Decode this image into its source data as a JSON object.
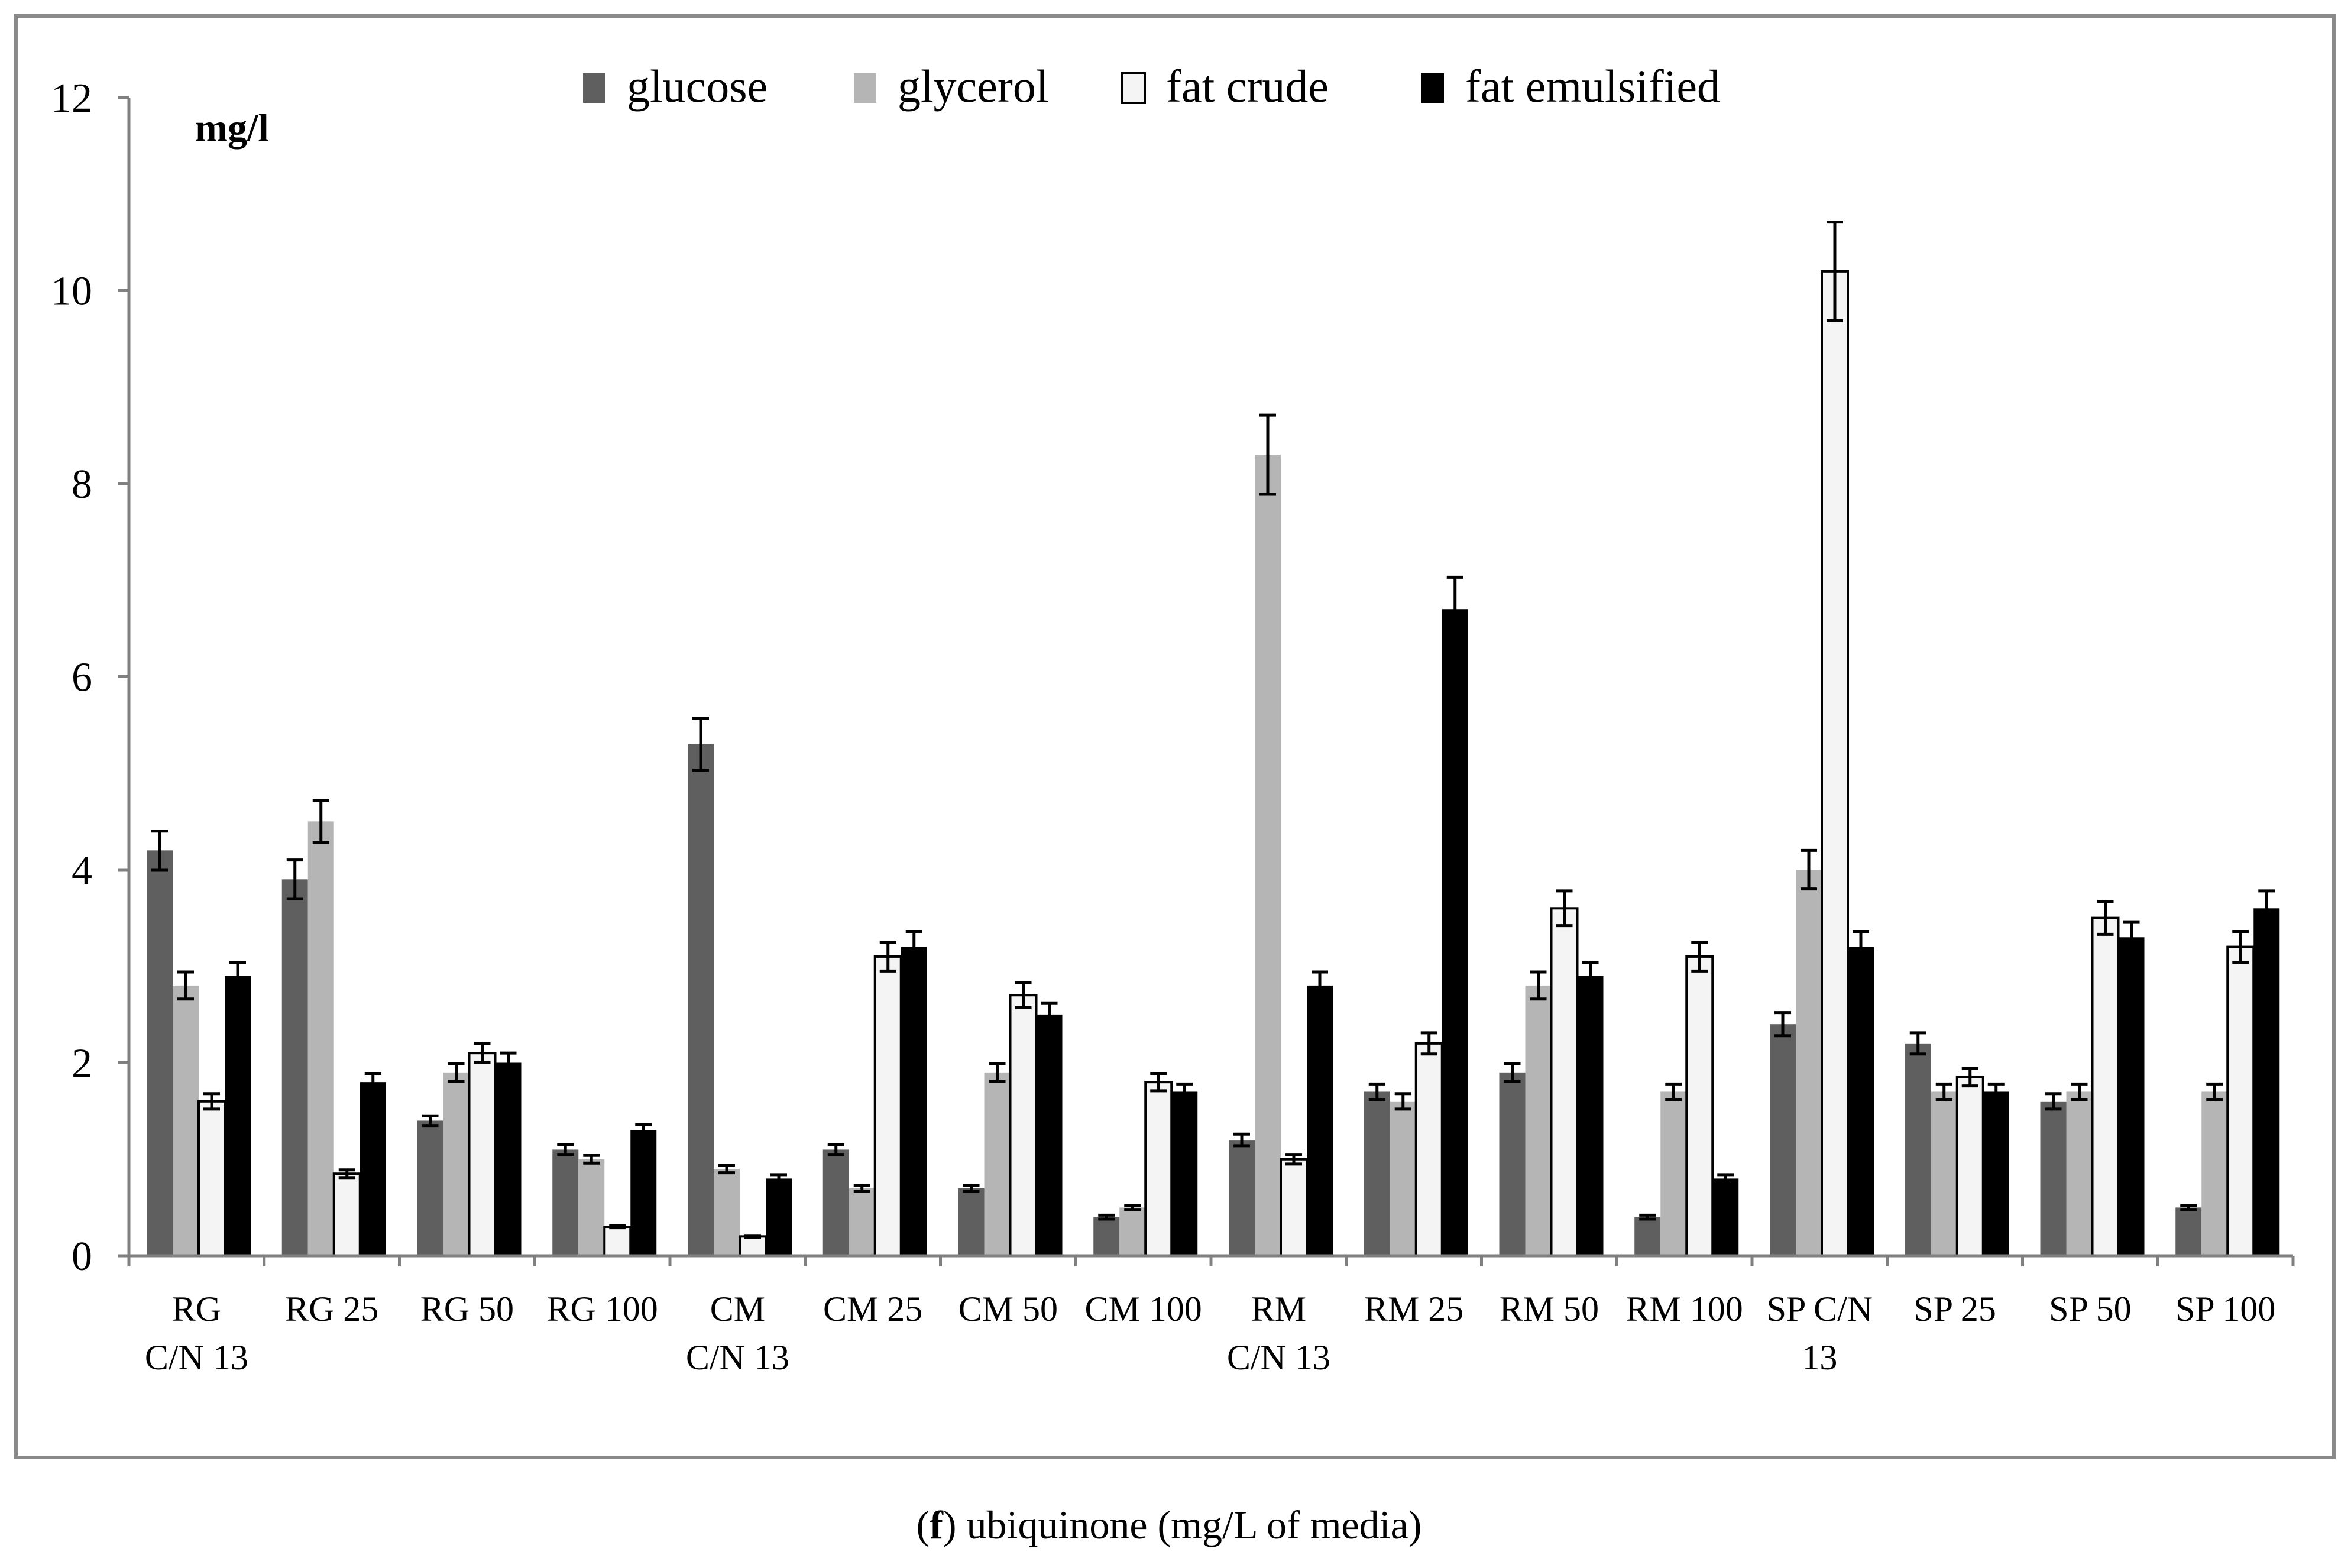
{
  "colors": {
    "glucose": "#5f5f5f",
    "glycerol": "#b5b5b5",
    "fat_crude": "#f4f4f4",
    "fat_emulsified": "#000000",
    "axis": "#808080"
  },
  "caption": {
    "letter": "f",
    "open_paren": "(",
    "close_paren": ")",
    "text": " ubiquinone (mg/L of media)"
  },
  "chart_data": {
    "type": "bar",
    "title": "",
    "ylabel": "mg/l",
    "xlabel": "",
    "ylim": [
      0,
      12
    ],
    "yticks": [
      0,
      2,
      4,
      6,
      8,
      10,
      12
    ],
    "grid": false,
    "legend_position": "top-center",
    "categories": [
      [
        "RG",
        "C/N 13"
      ],
      [
        "RG 25"
      ],
      [
        "RG 50"
      ],
      [
        "RG 100"
      ],
      [
        "CM",
        "C/N 13"
      ],
      [
        "CM 25"
      ],
      [
        "CM 50"
      ],
      [
        "CM 100"
      ],
      [
        "RM",
        "C/N 13"
      ],
      [
        "RM 25"
      ],
      [
        "RM 50"
      ],
      [
        "RM 100"
      ],
      [
        "SP C/N",
        "13"
      ],
      [
        "SP 25"
      ],
      [
        "SP 50"
      ],
      [
        "SP 100"
      ]
    ],
    "series": [
      {
        "name": "glucose",
        "color_key": "glucose",
        "values": [
          4.2,
          3.9,
          1.4,
          1.1,
          5.3,
          1.1,
          0.7,
          0.4,
          1.2,
          1.7,
          1.9,
          0.4,
          2.4,
          2.2,
          1.6,
          0.5
        ],
        "errors": [
          0.2,
          0.2,
          0.05,
          0.05,
          0.27,
          0.05,
          0.03,
          0.02,
          0.06,
          0.08,
          0.09,
          0.02,
          0.12,
          0.11,
          0.08,
          0.02
        ]
      },
      {
        "name": "glycerol",
        "color_key": "glycerol",
        "values": [
          2.8,
          4.5,
          1.9,
          1.0,
          0.9,
          0.7,
          1.9,
          0.5,
          8.3,
          1.6,
          2.8,
          1.7,
          4.0,
          1.7,
          1.7,
          1.7
        ],
        "errors": [
          0.14,
          0.22,
          0.09,
          0.04,
          0.04,
          0.03,
          0.09,
          0.02,
          0.41,
          0.08,
          0.14,
          0.08,
          0.2,
          0.08,
          0.08,
          0.08
        ]
      },
      {
        "name": "fat crude",
        "color_key": "fat_crude",
        "values": [
          1.6,
          0.85,
          2.1,
          0.3,
          0.2,
          3.1,
          2.7,
          1.8,
          1.0,
          2.2,
          3.6,
          3.1,
          10.2,
          1.85,
          3.5,
          3.2
        ],
        "errors": [
          0.08,
          0.04,
          0.1,
          0.01,
          0.01,
          0.15,
          0.13,
          0.09,
          0.05,
          0.11,
          0.18,
          0.15,
          0.51,
          0.09,
          0.17,
          0.16
        ]
      },
      {
        "name": "fat emulsified",
        "color_key": "fat_emulsified",
        "values": [
          2.9,
          1.8,
          2.0,
          1.3,
          0.8,
          3.2,
          2.5,
          1.7,
          2.8,
          6.7,
          2.9,
          0.8,
          3.2,
          1.7,
          3.3,
          3.6
        ],
        "errors": [
          0.14,
          0.09,
          0.1,
          0.06,
          0.04,
          0.16,
          0.12,
          0.08,
          0.14,
          0.33,
          0.14,
          0.04,
          0.16,
          0.08,
          0.16,
          0.18
        ]
      }
    ]
  }
}
